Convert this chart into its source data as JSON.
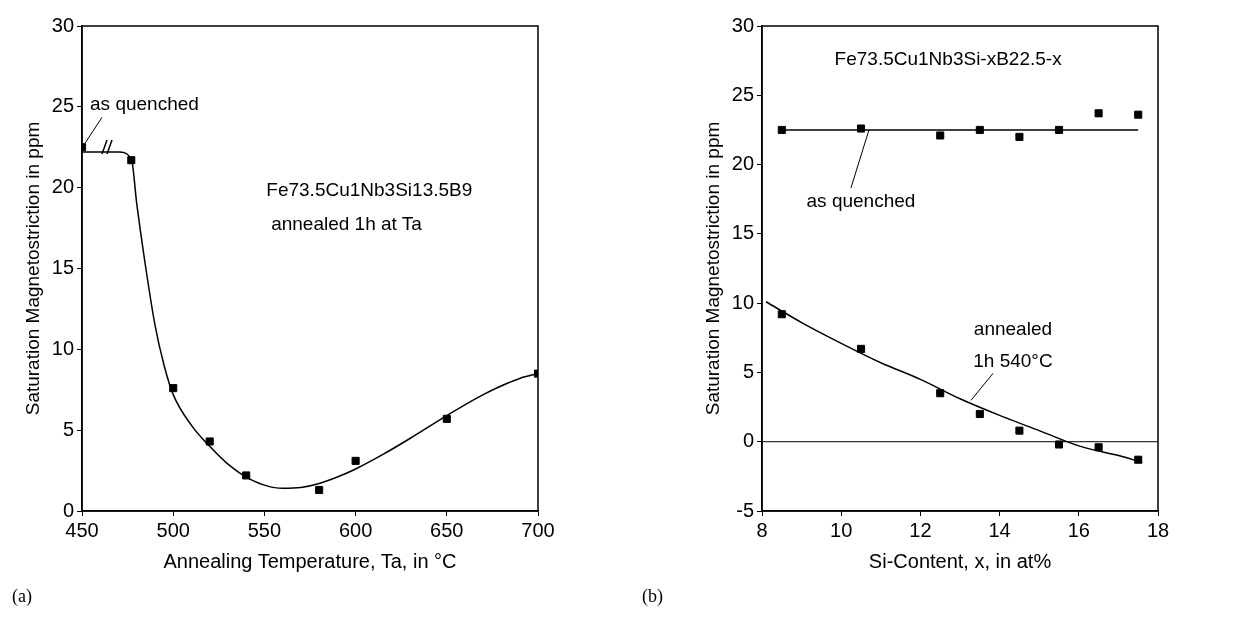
{
  "chart_data": [
    {
      "type": "scatter",
      "title": "Fe73.5Cu1Nb3Si13.5B9",
      "subtitle": "annealed 1h at Ta",
      "xlabel": "Annealing Temperature, Ta, in °C",
      "ylabel": "Saturation Magnetostriction in ppm",
      "xlim": [
        450,
        700
      ],
      "ylim": [
        0,
        30
      ],
      "xticks": [
        450,
        500,
        550,
        600,
        650,
        700
      ],
      "yticks": [
        0,
        5,
        10,
        15,
        20,
        25,
        30
      ],
      "series": [
        {
          "type": "scatter",
          "color": "#000000",
          "marker": "square",
          "x": [
            450,
            477,
            500,
            520,
            540,
            580,
            600,
            650,
            700
          ],
          "values": [
            22.5,
            21.7,
            7.6,
            4.3,
            2.2,
            1.3,
            3.1,
            5.7,
            8.5
          ]
        },
        {
          "type": "line",
          "marker": "none",
          "color": "#000000",
          "x": [
            450,
            470,
            477,
            480,
            485,
            490,
            495,
            500,
            510,
            520,
            530,
            540,
            550,
            560,
            570,
            580,
            590,
            600,
            615,
            630,
            650,
            670,
            690,
            700
          ],
          "values": [
            22.2,
            22.2,
            21.8,
            19,
            15,
            11.5,
            9,
            7.2,
            5.3,
            4.0,
            2.9,
            2.1,
            1.6,
            1.4,
            1.45,
            1.7,
            2.1,
            2.6,
            3.5,
            4.5,
            5.9,
            7.2,
            8.2,
            8.5
          ]
        }
      ],
      "annotations": [
        {
          "text": "as quenched",
          "x": 450,
          "y": 22.5
        },
        "(a)"
      ]
    },
    {
      "type": "scatter",
      "title": "Fe73.5Cu1Nb3Si-xB22.5-x",
      "xlabel": "Si-Content, x, in at%",
      "ylabel": "Saturation Magnetostriction in ppm",
      "xlim": [
        8,
        18
      ],
      "ylim": [
        -5,
        30
      ],
      "xticks": [
        8,
        10,
        12,
        14,
        16,
        18
      ],
      "yticks": [
        -5,
        0,
        5,
        10,
        15,
        20,
        25,
        30
      ],
      "series": [
        {
          "type": "scatter",
          "color": "#000000",
          "marker": "square",
          "x": [
            8.5,
            10.5,
            12.5,
            13.5,
            14.5,
            15.5,
            16.5,
            17.5
          ],
          "values": [
            22.5,
            22.6,
            22.1,
            22.5,
            22.0,
            22.5,
            23.7,
            23.6
          ]
        },
        {
          "type": "line",
          "marker": "none",
          "color": "#000000",
          "x": [
            8.5,
            17.5
          ],
          "values": [
            22.5,
            22.5
          ]
        },
        {
          "type": "scatter",
          "color": "#000000",
          "marker": "square",
          "x": [
            8.5,
            10.5,
            12.5,
            13.5,
            14.5,
            15.5,
            16.5,
            17.5
          ],
          "values": [
            9.2,
            6.7,
            3.5,
            2.0,
            0.8,
            -0.2,
            -0.4,
            -1.3
          ]
        },
        {
          "type": "line",
          "marker": "none",
          "color": "#000000",
          "x": [
            8.1,
            9,
            10,
            11,
            12,
            13,
            14,
            15,
            16,
            17,
            17.6
          ],
          "values": [
            10.1,
            8.6,
            7.1,
            5.7,
            4.5,
            3.1,
            1.9,
            0.8,
            -0.3,
            -1.0,
            -1.5
          ]
        }
      ],
      "ref_lines": [
        {
          "axis": "y",
          "value": 0
        }
      ],
      "annotations": [
        {
          "text": "as quenched",
          "x": 10.7,
          "y": 22.5
        },
        {
          "text": "annealed\n1h 540°C",
          "x": 13.2,
          "y": 2.7
        },
        "(b)"
      ]
    }
  ]
}
